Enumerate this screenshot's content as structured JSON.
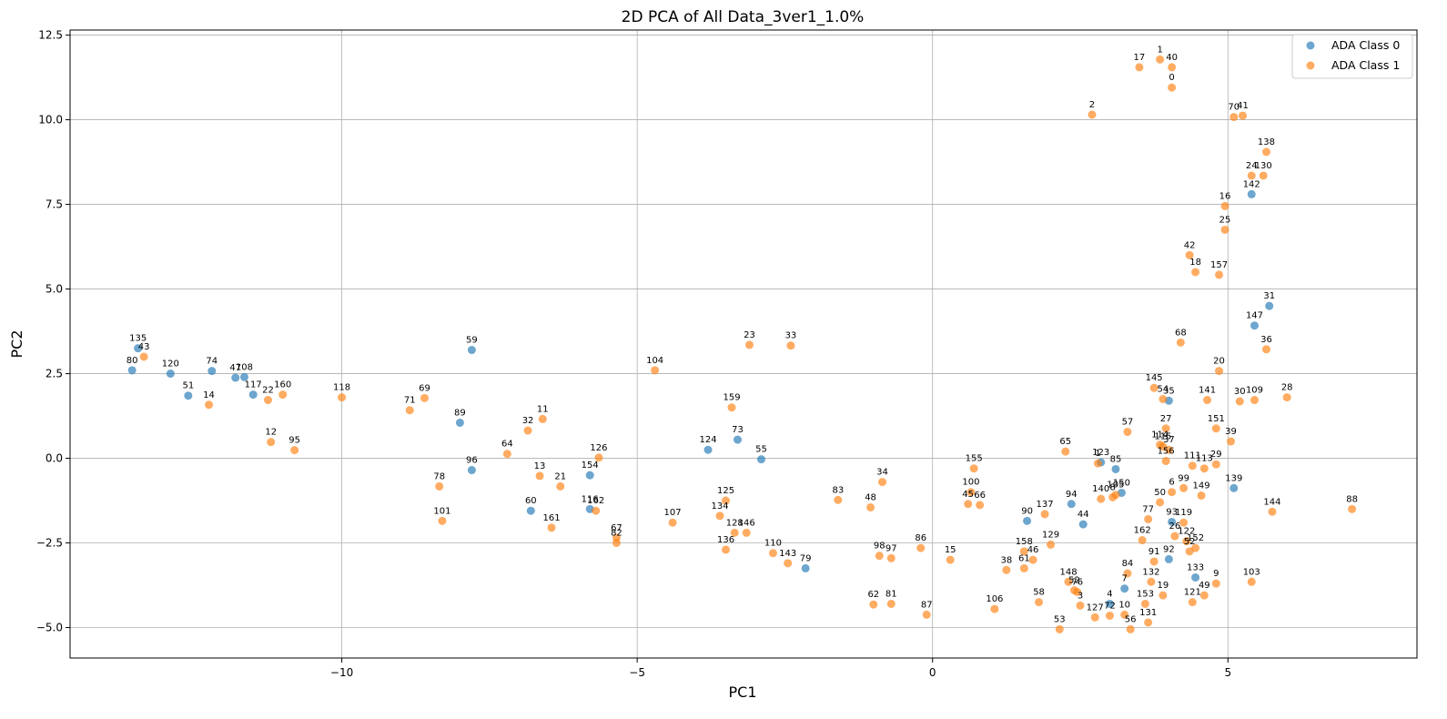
{
  "chart_data": {
    "type": "scatter",
    "title": "2D PCA of All Data_3ver1_1.0%",
    "xlabel": "PC1",
    "ylabel": "PC2",
    "xlim": [
      -14.6,
      8.2
    ],
    "ylim": [
      -5.9,
      12.65
    ],
    "xticks": [
      -10,
      -5,
      0,
      5
    ],
    "yticks": [
      -5.0,
      -2.5,
      0.0,
      2.5,
      5.0,
      7.5,
      10.0,
      12.5
    ],
    "xtick_labels": [
      "−10",
      "−5",
      "0",
      "5"
    ],
    "ytick_labels": [
      "−5.0",
      "−2.5",
      "0.0",
      "2.5",
      "5.0",
      "7.5",
      "10.0",
      "12.5"
    ],
    "grid": true,
    "legend_position": "top-right",
    "series": [
      {
        "name": "ADA Class 0",
        "color": "#1f77b4",
        "points": [
          {
            "label": "135",
            "x": -13.45,
            "y": 3.25
          },
          {
            "label": "80",
            "x": -13.55,
            "y": 2.6
          },
          {
            "label": "120",
            "x": -12.9,
            "y": 2.5
          },
          {
            "label": "51",
            "x": -12.6,
            "y": 1.85
          },
          {
            "label": "74",
            "x": -12.2,
            "y": 2.58
          },
          {
            "label": "47",
            "x": -11.8,
            "y": 2.38
          },
          {
            "label": "108",
            "x": -11.65,
            "y": 2.4
          },
          {
            "label": "117",
            "x": -11.5,
            "y": 1.88
          },
          {
            "label": "59",
            "x": -7.8,
            "y": 3.2
          },
          {
            "label": "89",
            "x": -8.0,
            "y": 1.05
          },
          {
            "label": "96",
            "x": -7.8,
            "y": -0.35
          },
          {
            "label": "60",
            "x": -6.8,
            "y": -1.55
          },
          {
            "label": "154",
            "x": -5.8,
            "y": -0.5
          },
          {
            "label": "116",
            "x": -5.8,
            "y": -1.5
          },
          {
            "label": "124",
            "x": -3.8,
            "y": 0.25
          },
          {
            "label": "73",
            "x": -3.3,
            "y": 0.55
          },
          {
            "label": "55",
            "x": -2.9,
            "y": -0.03
          },
          {
            "label": "79",
            "x": -2.15,
            "y": -3.25
          },
          {
            "label": "90",
            "x": 1.6,
            "y": -1.85
          },
          {
            "label": "94",
            "x": 2.35,
            "y": -1.35
          },
          {
            "label": "44",
            "x": 2.55,
            "y": -1.95
          },
          {
            "label": "123",
            "x": 2.85,
            "y": -0.12
          },
          {
            "label": "85",
            "x": 3.1,
            "y": -0.32
          },
          {
            "label": "150",
            "x": 3.2,
            "y": -1.02
          },
          {
            "label": "7",
            "x": 3.25,
            "y": -3.85
          },
          {
            "label": "4",
            "x": 3.0,
            "y": -4.3
          },
          {
            "label": "35",
            "x": 4.0,
            "y": 1.7
          },
          {
            "label": "93",
            "x": 4.05,
            "y": -1.88
          },
          {
            "label": "92",
            "x": 4.0,
            "y": -2.98
          },
          {
            "label": "133",
            "x": 4.45,
            "y": -3.52
          },
          {
            "label": "139",
            "x": 5.1,
            "y": -0.88
          },
          {
            "label": "142",
            "x": 5.4,
            "y": 7.8
          },
          {
            "label": "147",
            "x": 5.45,
            "y": 3.92
          },
          {
            "label": "31",
            "x": 5.7,
            "y": 4.5
          }
        ]
      },
      {
        "name": "ADA Class 1",
        "color": "#ff7f0e",
        "points": [
          {
            "label": "43",
            "x": -13.35,
            "y": 3.0
          },
          {
            "label": "14",
            "x": -12.25,
            "y": 1.58
          },
          {
            "label": "22",
            "x": -11.25,
            "y": 1.72
          },
          {
            "label": "160",
            "x": -11.0,
            "y": 1.88
          },
          {
            "label": "12",
            "x": -11.2,
            "y": 0.48
          },
          {
            "label": "95",
            "x": -10.8,
            "y": 0.24
          },
          {
            "label": "118",
            "x": -10.0,
            "y": 1.8
          },
          {
            "label": "71",
            "x": -8.85,
            "y": 1.42
          },
          {
            "label": "69",
            "x": -8.6,
            "y": 1.78
          },
          {
            "label": "78",
            "x": -8.35,
            "y": -0.83
          },
          {
            "label": "101",
            "x": -8.3,
            "y": -1.85
          },
          {
            "label": "32",
            "x": -6.85,
            "y": 0.82
          },
          {
            "label": "11",
            "x": -6.6,
            "y": 1.16
          },
          {
            "label": "64",
            "x": -7.2,
            "y": 0.13
          },
          {
            "label": "13",
            "x": -6.65,
            "y": -0.52
          },
          {
            "label": "21",
            "x": -6.3,
            "y": -0.83
          },
          {
            "label": "161",
            "x": -6.45,
            "y": -2.05
          },
          {
            "label": "126",
            "x": -5.65,
            "y": 0.02
          },
          {
            "label": "162",
            "x": -5.7,
            "y": -1.55
          },
          {
            "label": "67",
            "x": -5.35,
            "y": -2.35
          },
          {
            "label": "82",
            "x": -5.35,
            "y": -2.5
          },
          {
            "label": "104",
            "x": -4.7,
            "y": 2.6
          },
          {
            "label": "107",
            "x": -4.4,
            "y": -1.9
          },
          {
            "label": "159",
            "x": -3.4,
            "y": 1.5
          },
          {
            "label": "125",
            "x": -3.5,
            "y": -1.25
          },
          {
            "label": "134",
            "x": -3.6,
            "y": -1.7
          },
          {
            "label": "128",
            "x": -3.35,
            "y": -2.2
          },
          {
            "label": "146",
            "x": -3.15,
            "y": -2.2
          },
          {
            "label": "136",
            "x": -3.5,
            "y": -2.7
          },
          {
            "label": "23",
            "x": -3.1,
            "y": 3.35
          },
          {
            "label": "33",
            "x": -2.4,
            "y": 3.33
          },
          {
            "label": "110",
            "x": -2.7,
            "y": -2.8
          },
          {
            "label": "143",
            "x": -2.45,
            "y": -3.1
          },
          {
            "label": "83",
            "x": -1.6,
            "y": -1.23
          },
          {
            "label": "34",
            "x": -0.85,
            "y": -0.7
          },
          {
            "label": "48",
            "x": -1.05,
            "y": -1.45
          },
          {
            "label": "98",
            "x": -0.9,
            "y": -2.88
          },
          {
            "label": "97",
            "x": -0.7,
            "y": -2.95
          },
          {
            "label": "62",
            "x": -1.0,
            "y": -4.32
          },
          {
            "label": "81",
            "x": -0.7,
            "y": -4.3
          },
          {
            "label": "86",
            "x": -0.2,
            "y": -2.65
          },
          {
            "label": "87",
            "x": -0.1,
            "y": -4.62
          },
          {
            "label": "15",
            "x": 0.3,
            "y": -3.0
          },
          {
            "label": "155",
            "x": 0.7,
            "y": -0.3
          },
          {
            "label": "100",
            "x": 0.65,
            "y": -1.0
          },
          {
            "label": "45",
            "x": 0.6,
            "y": -1.35
          },
          {
            "label": "66",
            "x": 0.8,
            "y": -1.38
          },
          {
            "label": "106",
            "x": 1.05,
            "y": -4.45
          },
          {
            "label": "38",
            "x": 1.25,
            "y": -3.3
          },
          {
            "label": "158",
            "x": 1.55,
            "y": -2.75
          },
          {
            "label": "61",
            "x": 1.55,
            "y": -3.25
          },
          {
            "label": "46",
            "x": 1.7,
            "y": -3.0
          },
          {
            "label": "137",
            "x": 1.9,
            "y": -1.65
          },
          {
            "label": "129",
            "x": 2.0,
            "y": -2.55
          },
          {
            "label": "58",
            "x": 1.8,
            "y": -4.25
          },
          {
            "label": "53",
            "x": 2.15,
            "y": -5.05
          },
          {
            "label": "65",
            "x": 2.25,
            "y": 0.2
          },
          {
            "label": "1",
            "x": 2.8,
            "y": -0.15
          },
          {
            "label": "148",
            "x": 2.3,
            "y": -3.65
          },
          {
            "label": "52",
            "x": 2.4,
            "y": -3.9
          },
          {
            "label": "76",
            "x": 2.45,
            "y": -3.95
          },
          {
            "label": "3",
            "x": 2.5,
            "y": -4.35
          },
          {
            "label": "127",
            "x": 2.75,
            "y": -4.7
          },
          {
            "label": "72",
            "x": 3.0,
            "y": -4.65
          },
          {
            "label": "10",
            "x": 3.25,
            "y": -4.62
          },
          {
            "label": "56",
            "x": 3.35,
            "y": -5.05
          },
          {
            "label": "140",
            "x": 2.85,
            "y": -1.2
          },
          {
            "label": "105",
            "x": 3.1,
            "y": -1.08
          },
          {
            "label": "8",
            "x": 3.05,
            "y": -1.15
          },
          {
            "label": "2",
            "x": 2.7,
            "y": 10.15
          },
          {
            "label": "57",
            "x": 3.3,
            "y": 0.78
          },
          {
            "label": "84",
            "x": 3.3,
            "y": -3.4
          },
          {
            "label": "162b",
            "x": 3.55,
            "y": -2.42
          },
          {
            "label": "77",
            "x": 3.65,
            "y": -1.8
          },
          {
            "label": "132",
            "x": 3.7,
            "y": -3.65
          },
          {
            "label": "153",
            "x": 3.6,
            "y": -4.3
          },
          {
            "label": "131",
            "x": 3.65,
            "y": -4.85
          },
          {
            "label": "17",
            "x": 3.5,
            "y": 11.55
          },
          {
            "label": "1b",
            "x": 3.85,
            "y": 11.78
          },
          {
            "label": "40",
            "x": 4.05,
            "y": 11.55
          },
          {
            "label": "0",
            "x": 4.05,
            "y": 10.95
          },
          {
            "label": "145",
            "x": 3.75,
            "y": 2.08
          },
          {
            "label": "54",
            "x": 3.9,
            "y": 1.75
          },
          {
            "label": "27",
            "x": 3.95,
            "y": 0.88
          },
          {
            "label": "114",
            "x": 3.85,
            "y": 0.4
          },
          {
            "label": "115",
            "x": 3.9,
            "y": 0.35
          },
          {
            "label": "37",
            "x": 4.0,
            "y": 0.25
          },
          {
            "label": "156",
            "x": 3.95,
            "y": -0.08
          },
          {
            "label": "50",
            "x": 3.85,
            "y": -1.3
          },
          {
            "label": "6",
            "x": 4.05,
            "y": -1.0
          },
          {
            "label": "99",
            "x": 4.25,
            "y": -0.88
          },
          {
            "label": "119",
            "x": 4.25,
            "y": -1.9
          },
          {
            "label": "26",
            "x": 4.1,
            "y": -2.3
          },
          {
            "label": "122",
            "x": 4.3,
            "y": -2.45
          },
          {
            "label": "52b",
            "x": 4.35,
            "y": -2.75
          },
          {
            "label": "152",
            "x": 4.45,
            "y": -2.65
          },
          {
            "label": "91",
            "x": 3.75,
            "y": -3.05
          },
          {
            "label": "19",
            "x": 3.9,
            "y": -4.05
          },
          {
            "label": "121",
            "x": 4.4,
            "y": -4.25
          },
          {
            "label": "49",
            "x": 4.6,
            "y": -4.05
          },
          {
            "label": "9",
            "x": 4.8,
            "y": -3.7
          },
          {
            "label": "111",
            "x": 4.4,
            "y": -0.22
          },
          {
            "label": "113",
            "x": 4.6,
            "y": -0.3
          },
          {
            "label": "29",
            "x": 4.8,
            "y": -0.18
          },
          {
            "label": "149",
            "x": 4.55,
            "y": -1.1
          },
          {
            "label": "68",
            "x": 4.2,
            "y": 3.42
          },
          {
            "label": "42",
            "x": 4.35,
            "y": 6.0
          },
          {
            "label": "18",
            "x": 4.45,
            "y": 5.5
          },
          {
            "label": "157",
            "x": 4.85,
            "y": 5.42
          },
          {
            "label": "25",
            "x": 4.95,
            "y": 6.75
          },
          {
            "label": "16",
            "x": 4.95,
            "y": 7.45
          },
          {
            "label": "141",
            "x": 4.65,
            "y": 1.72
          },
          {
            "label": "151",
            "x": 4.8,
            "y": 0.88
          },
          {
            "label": "20",
            "x": 4.85,
            "y": 2.58
          },
          {
            "label": "39",
            "x": 5.05,
            "y": 0.5
          },
          {
            "label": "30",
            "x": 5.2,
            "y": 1.68
          },
          {
            "label": "109",
            "x": 5.45,
            "y": 1.72
          },
          {
            "label": "70",
            "x": 5.1,
            "y": 10.08
          },
          {
            "label": "41",
            "x": 5.25,
            "y": 10.12
          },
          {
            "label": "24",
            "x": 5.4,
            "y": 8.35
          },
          {
            "label": "130",
            "x": 5.6,
            "y": 8.35
          },
          {
            "label": "138",
            "x": 5.65,
            "y": 9.05
          },
          {
            "label": "36",
            "x": 5.65,
            "y": 3.22
          },
          {
            "label": "28",
            "x": 6.0,
            "y": 1.8
          },
          {
            "label": "144",
            "x": 5.75,
            "y": -1.58
          },
          {
            "label": "103",
            "x": 5.4,
            "y": -3.65
          },
          {
            "label": "88",
            "x": 7.1,
            "y": -1.5
          }
        ]
      }
    ]
  }
}
